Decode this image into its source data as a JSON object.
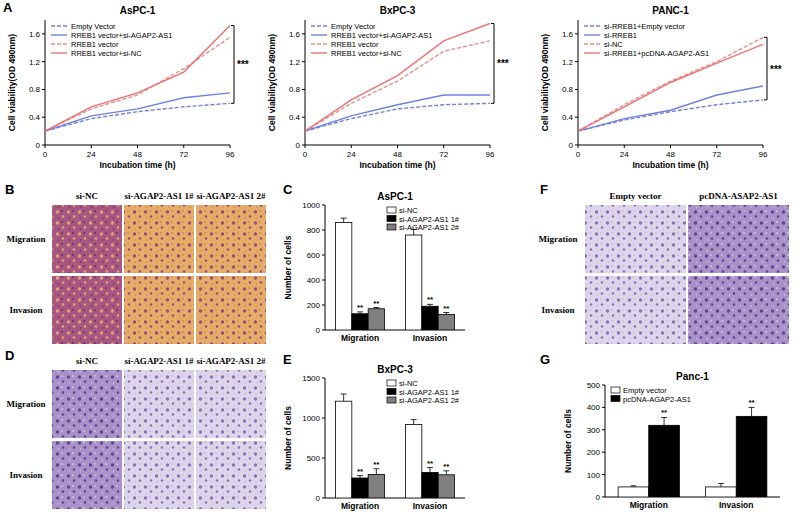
{
  "chart_data": [
    {
      "type": "line",
      "title": "AsPC-1",
      "x_label": "Incubation time (h)",
      "y_label": "Cell viability(OD 490nm)",
      "x": [
        0,
        24,
        48,
        72,
        96
      ],
      "xlim": [
        0,
        96
      ],
      "xticks": [
        0,
        24,
        48,
        72,
        96
      ],
      "ylim": [
        0,
        1.8
      ],
      "yticks": [
        0,
        0.4,
        0.8,
        1.2,
        1.6
      ],
      "grid": false,
      "legend": "upper left",
      "annotation": "***",
      "series": [
        {
          "name": "Empty Vector",
          "color": "#7080e0",
          "line_style": "dashed",
          "values": [
            0.2,
            0.38,
            0.48,
            0.55,
            0.6
          ]
        },
        {
          "name": "RREB1 vector+si-AGAP2-AS1",
          "color": "#7080e0",
          "line_style": "solid",
          "values": [
            0.2,
            0.42,
            0.52,
            0.68,
            0.75
          ]
        },
        {
          "name": "RREB1 vector",
          "color": "#e89090",
          "line_style": "dashed",
          "values": [
            0.2,
            0.52,
            0.72,
            1.1,
            1.55
          ]
        },
        {
          "name": "RREB1 vector+si-NC",
          "color": "#f07070",
          "line_style": "solid",
          "values": [
            0.2,
            0.55,
            0.75,
            1.05,
            1.72
          ]
        }
      ]
    },
    {
      "type": "line",
      "title": "BxPC-3",
      "x_label": "Incubation time (h)",
      "y_label": "Cell viability(OD 490nm)",
      "x": [
        0,
        24,
        48,
        72,
        96
      ],
      "xlim": [
        0,
        96
      ],
      "xticks": [
        0,
        24,
        48,
        72,
        96
      ],
      "ylim": [
        0,
        1.8
      ],
      "yticks": [
        0,
        0.4,
        0.8,
        1.2,
        1.6
      ],
      "grid": false,
      "legend": "upper left",
      "annotation": "***",
      "series": [
        {
          "name": "Empty Vector",
          "color": "#7080e0",
          "line_style": "dashed",
          "values": [
            0.2,
            0.38,
            0.52,
            0.58,
            0.6
          ]
        },
        {
          "name": "RREB1 vector+si-AGAP2-AS1",
          "color": "#7080e0",
          "line_style": "solid",
          "values": [
            0.2,
            0.42,
            0.58,
            0.72,
            0.72
          ]
        },
        {
          "name": "RREB1 vector",
          "color": "#e89090",
          "line_style": "dashed",
          "values": [
            0.2,
            0.6,
            0.92,
            1.35,
            1.5
          ]
        },
        {
          "name": "RREB1 vector+si-NC",
          "color": "#f07070",
          "line_style": "solid",
          "values": [
            0.2,
            0.65,
            1.0,
            1.5,
            1.75
          ]
        }
      ]
    },
    {
      "type": "line",
      "title": "PANC-1",
      "x_label": "Incubation time (h)",
      "y_label": "Cell viability(OD 490nm)",
      "x": [
        0,
        24,
        48,
        72,
        96
      ],
      "xlim": [
        0,
        96
      ],
      "xticks": [
        0,
        24,
        48,
        72,
        96
      ],
      "ylim": [
        0,
        1.8
      ],
      "yticks": [
        0,
        0.4,
        0.8,
        1.2,
        1.6
      ],
      "grid": false,
      "legend": "upper left",
      "annotation": "***",
      "series": [
        {
          "name": "si-RREB1+Empty vector",
          "color": "#7080e0",
          "line_style": "dashed",
          "values": [
            0.2,
            0.36,
            0.48,
            0.58,
            0.65
          ]
        },
        {
          "name": "si-RREB1",
          "color": "#7080e0",
          "line_style": "solid",
          "values": [
            0.2,
            0.38,
            0.5,
            0.72,
            0.85
          ]
        },
        {
          "name": "si-NC",
          "color": "#e89090",
          "line_style": "dashed",
          "values": [
            0.2,
            0.58,
            0.92,
            1.2,
            1.55
          ]
        },
        {
          "name": "si-RREB1+pcDNA-AGAP2-AS1",
          "color": "#f07070",
          "line_style": "solid",
          "values": [
            0.2,
            0.55,
            0.9,
            1.18,
            1.45
          ]
        }
      ]
    },
    {
      "type": "bar",
      "title": "AsPC-1",
      "y_label": "Number of cells",
      "categories": [
        "Migration",
        "Invasion"
      ],
      "ylim": [
        0,
        1000
      ],
      "yticks": [
        0,
        200,
        400,
        600,
        800,
        1000
      ],
      "grid": false,
      "legend": "upper right",
      "annotation": "**",
      "series": [
        {
          "name": "si-NC",
          "color": "#ffffff",
          "values": [
            860,
            760
          ],
          "errors": [
            35,
            45
          ]
        },
        {
          "name": "si-AGAP2-AS1 1#",
          "color": "#000000",
          "values": [
            130,
            190
          ],
          "errors": [
            15,
            15
          ]
        },
        {
          "name": "si-AGAP2-AS1 2#",
          "color": "#808080",
          "values": [
            170,
            125
          ],
          "errors": [
            10,
            15
          ]
        }
      ]
    },
    {
      "type": "bar",
      "title": "BxPC-3",
      "y_label": "Number of cells",
      "categories": [
        "Migration",
        "Invasion"
      ],
      "ylim": [
        0,
        1500
      ],
      "yticks": [
        0,
        500,
        1000,
        1500
      ],
      "grid": false,
      "legend": "upper right",
      "annotation": "**",
      "series": [
        {
          "name": "si-NC",
          "color": "#ffffff",
          "values": [
            1210,
            920
          ],
          "errors": [
            90,
            60
          ]
        },
        {
          "name": "si-AGAP2-AS1 1#",
          "color": "#000000",
          "values": [
            250,
            320
          ],
          "errors": [
            30,
            60
          ]
        },
        {
          "name": "si-AGAP2-AS1 2#",
          "color": "#808080",
          "values": [
            295,
            290
          ],
          "errors": [
            70,
            50
          ]
        }
      ]
    },
    {
      "type": "bar",
      "title": "Panc-1",
      "y_label": "Number of cells",
      "categories": [
        "Migration",
        "Invasion"
      ],
      "ylim": [
        0,
        500
      ],
      "yticks": [
        0,
        100,
        200,
        300,
        400,
        500
      ],
      "grid": false,
      "legend": "upper left",
      "annotation": "**",
      "series": [
        {
          "name": "Empty vector",
          "color": "#ffffff",
          "values": [
            45,
            45
          ],
          "errors": [
            5,
            15
          ]
        },
        {
          "name": "pcDNA-AGAP2-AS1",
          "color": "#000000",
          "values": [
            320,
            360
          ],
          "errors": [
            35,
            40
          ]
        }
      ]
    }
  ],
  "panel_letters": [
    "A",
    "B",
    "C",
    "D",
    "E",
    "F",
    "G"
  ],
  "image_panels": [
    {
      "columns": [
        "si-NC",
        "si-AGAP2-AS1 1#",
        "si-AGAP2-AS1 2#"
      ],
      "rows": [
        "Migration",
        "Invasion"
      ]
    },
    {
      "columns": [
        "si-NC",
        "si-AGAP2-AS1 1#",
        "si-AGAP2-AS1 2#"
      ],
      "rows": [
        "Migration",
        "Invasion"
      ]
    },
    {
      "columns": [
        "Empty vector",
        "pcDNA-ASAP2-AS1"
      ],
      "rows": [
        "Migration",
        "Invasion"
      ]
    }
  ]
}
